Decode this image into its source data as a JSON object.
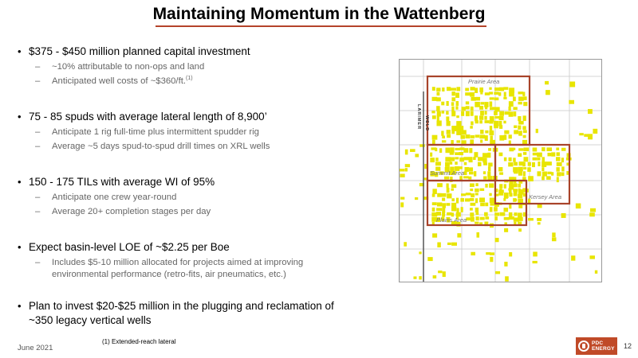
{
  "title": "Maintaining Momentum in the Wattenberg",
  "bullets": [
    {
      "text": "$375 - $450 million planned capital investment",
      "subs": [
        {
          "text": "~10% attributable to non-ops and land"
        },
        {
          "text": "Anticipated well costs of ~$360/ft.",
          "sup": "(1)"
        }
      ]
    },
    {
      "text": "75 - 85 spuds with average lateral length of 8,900’",
      "subs": [
        {
          "text": "Anticipate 1 rig full-time plus intermittent spudder rig"
        },
        {
          "text": "Average ~5 days spud-to-spud drill times on XRL wells"
        }
      ]
    },
    {
      "text": "150 - 175 TILs with average WI of 95%",
      "subs": [
        {
          "text": "Anticipate one crew year-round"
        },
        {
          "text": "Average 20+ completion stages per day"
        }
      ]
    },
    {
      "text": "Expect basin-level LOE of ~$2.25 per Boe",
      "subs": [
        {
          "text": "Includes $5-10 million allocated for projects aimed at improving environmental performance (retro-fits, air pneumatics, etc.)"
        }
      ]
    },
    {
      "text": "Plan to invest $20-$25 million in the plugging and reclamation of ~350 legacy vertical wells",
      "subs": []
    }
  ],
  "map": {
    "labels": {
      "prairie": "Prairie Area",
      "summit": "Summit Area",
      "kersey": "Kersey Area",
      "plains": "Plains Area",
      "larimer": "LARIMER",
      "weld": "WELD"
    },
    "colors": {
      "acreage": "#e8e500",
      "boundary": "#a8432a",
      "grid": "#c8c8c8"
    }
  },
  "footer": {
    "date": "June 2021",
    "footnote": "(1) Extended-reach lateral",
    "logo_line1": "PDC",
    "logo_line2": "ENERGY",
    "page_number": "12"
  }
}
